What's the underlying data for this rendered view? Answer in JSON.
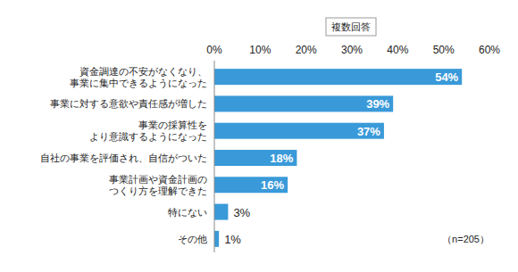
{
  "chart_data": {
    "type": "bar",
    "orientation": "horizontal",
    "categories": [
      "資金調達の不安がなくなり、\n事業に集中できるようになった",
      "事業に対する意欲や責任感が増した",
      "事業の採算性を\nより意識するようになった",
      "自社の事業を評価され、自信がついた",
      "事業計画や資金計画の\nつくり方を理解できた",
      "特にない",
      "その他"
    ],
    "values": [
      54,
      39,
      37,
      18,
      16,
      3,
      1
    ],
    "value_labels": [
      "54%",
      "39%",
      "37%",
      "18%",
      "16%",
      "3%",
      "1%"
    ],
    "color": "#3a9ad9",
    "xlim": [
      0,
      60
    ],
    "xticks": [
      {
        "value": 0,
        "label": "0%"
      },
      {
        "value": 10,
        "label": "10%"
      },
      {
        "value": 20,
        "label": "20%"
      },
      {
        "value": 30,
        "label": "30%"
      },
      {
        "value": 40,
        "label": "40%"
      },
      {
        "value": 50,
        "label": "50%"
      },
      {
        "value": 60,
        "label": "60%"
      }
    ],
    "grid": false,
    "data_labels": true,
    "annotations": [
      "複数回答",
      "（n=205）"
    ]
  }
}
